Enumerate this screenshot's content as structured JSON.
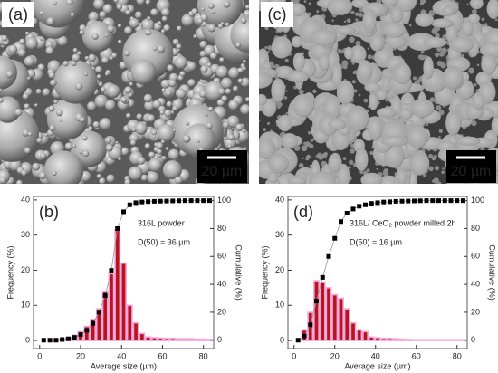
{
  "images": [
    {
      "panel_label": "(a)",
      "scale_bar": "20 µm"
    },
    {
      "panel_label": "(c)",
      "scale_bar": "20 µm"
    }
  ],
  "chart_data": [
    {
      "type": "bar",
      "panel_label": "(b)",
      "annotations": [
        "316L powder",
        "D(50) = 36 µm"
      ],
      "xlabel": "Average size (µm)",
      "ylabel": "Frequency (%)",
      "y2label": "Cumulative (%)",
      "x": [
        2,
        5,
        8,
        11,
        14,
        17,
        20,
        23,
        26,
        29,
        32,
        35,
        38,
        41,
        44,
        47,
        50,
        53,
        56,
        59,
        62,
        65,
        68,
        71,
        74,
        77,
        80,
        83
      ],
      "series": [
        {
          "type": "bar",
          "color": "#b8141c",
          "edgecolor": "#f4a6dc",
          "values": [
            0,
            0,
            0.2,
            0.3,
            0.8,
            1.5,
            2.5,
            4,
            6,
            9,
            14,
            19,
            31.5,
            22,
            10,
            5,
            2,
            1,
            0.8,
            0.7,
            0.6,
            0.6,
            0.5,
            0.5,
            0.5,
            0.4,
            0.4,
            0.3
          ]
        },
        {
          "type": "line",
          "axis": "y2",
          "color": "#000000",
          "values": [
            0,
            0,
            0,
            0.5,
            1,
            2,
            4,
            7,
            12,
            20,
            32,
            50,
            80,
            92,
            97,
            98.5,
            99,
            99.3,
            99.5,
            99.6,
            99.7,
            99.8,
            99.9,
            100,
            100,
            100,
            100,
            100
          ]
        }
      ],
      "xlim": [
        -3,
        85
      ],
      "xticks": [
        0,
        20,
        40,
        60,
        80
      ],
      "ylim": [
        -2.3,
        41
      ],
      "yticks": [
        0,
        10,
        20,
        30,
        40
      ],
      "y2lim": [
        -6,
        103
      ],
      "y2ticks": [
        0,
        20,
        40,
        60,
        80,
        100
      ]
    },
    {
      "type": "bar",
      "panel_label": "(d)",
      "annotations": [
        "316L/ CeO₂ powder milled 2h",
        "D(50) = 16 µm"
      ],
      "xlabel": "Average size (µm)",
      "ylabel": "Frequency (%)",
      "y2label": "Cumulative (%)",
      "x": [
        2,
        5,
        8,
        11,
        14,
        17,
        20,
        23,
        26,
        29,
        32,
        35,
        38,
        41,
        44,
        47,
        50,
        53,
        56,
        59,
        62,
        65,
        68,
        71,
        74,
        77,
        80,
        83
      ],
      "series": [
        {
          "type": "bar",
          "color": "#b8141c",
          "edgecolor": "#f4a6dc",
          "values": [
            0,
            3,
            8,
            17,
            16.5,
            15,
            13,
            12,
            9,
            5,
            3,
            2.5,
            1,
            0.8,
            0.6,
            0.6,
            0.5,
            0.4,
            0.3,
            0.2,
            0.2,
            0.2,
            0.2,
            0.2,
            0.2,
            0.2,
            0.2,
            0.2
          ]
        },
        {
          "type": "line",
          "axis": "y2",
          "color": "#000000",
          "values": [
            0,
            3,
            11,
            28,
            45,
            60,
            73,
            85,
            91,
            94,
            96,
            97,
            98,
            98.5,
            99,
            99.2,
            99.5,
            99.6,
            99.7,
            99.8,
            99.9,
            100,
            100,
            100,
            100,
            100,
            100,
            100
          ]
        }
      ],
      "xlim": [
        -3,
        85
      ],
      "xticks": [
        0,
        20,
        40,
        60,
        80
      ],
      "ylim": [
        -2.3,
        41
      ],
      "yticks": [
        0,
        10,
        20,
        30,
        40
      ],
      "y2lim": [
        -6,
        103
      ],
      "y2ticks": [
        0,
        20,
        40,
        60,
        80,
        100
      ]
    }
  ]
}
